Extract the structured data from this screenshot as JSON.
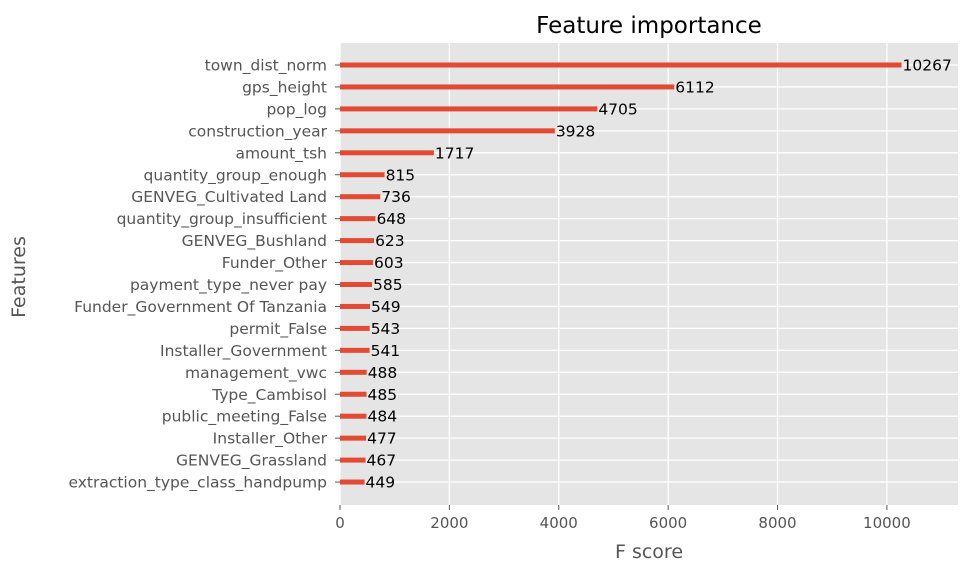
{
  "chart_data": {
    "type": "bar",
    "orientation": "horizontal",
    "title": "Feature importance",
    "xlabel": "F score",
    "ylabel": "Features",
    "xlim": [
      0,
      11300
    ],
    "xticks": [
      0,
      2000,
      4000,
      6000,
      8000,
      10000
    ],
    "grid": true,
    "categories": [
      "town_dist_norm",
      "gps_height",
      "pop_log",
      "construction_year",
      "amount_tsh",
      "quantity_group_enough",
      "GENVEG_Cultivated Land",
      "quantity_group_insufficient",
      "GENVEG_Bushland",
      "Funder_Other",
      "payment_type_never pay",
      "Funder_Government Of Tanzania",
      "permit_False",
      "Installer_Government",
      "management_vwc",
      "Type_Cambisol",
      "public_meeting_False",
      "Installer_Other",
      "GENVEG_Grassland",
      "extraction_type_class_handpump"
    ],
    "values": [
      10267,
      6112,
      4705,
      3928,
      1717,
      815,
      736,
      648,
      623,
      603,
      585,
      549,
      543,
      541,
      488,
      485,
      484,
      477,
      467,
      449
    ],
    "colors": {
      "bar": "#e24a33",
      "plot_background": "#e5e5e5",
      "grid": "#ffffff"
    }
  }
}
